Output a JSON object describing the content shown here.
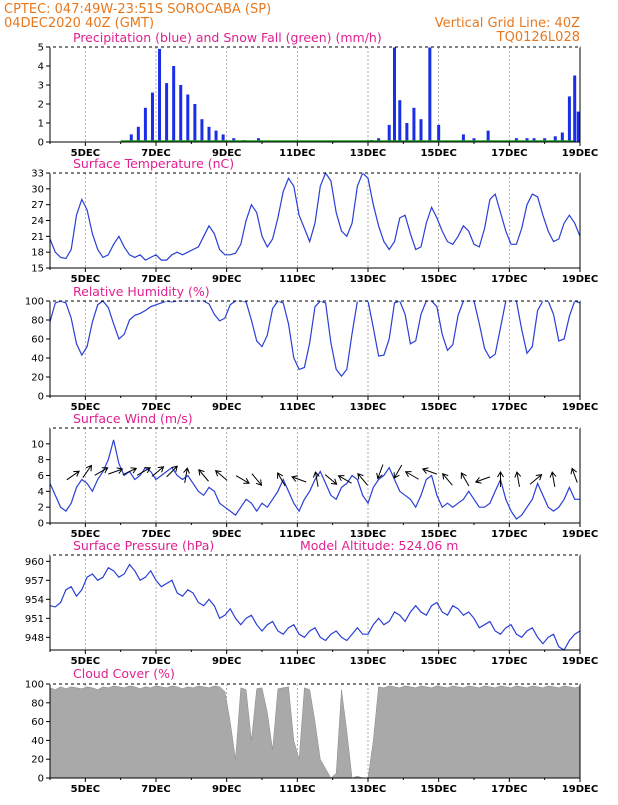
{
  "header": {
    "line1": "CPTEC:   047:49W-23:51S   SOROCABA (SP)",
    "line2": "04DEC2020 40Z (GMT)",
    "grid_note": "Vertical Grid Line: 40Z",
    "code": "TQ0126L028"
  },
  "colors": {
    "header": "#e8781e",
    "title": "#e0208e",
    "rain": "#1a2ee8",
    "snow": "#1a9a1a",
    "line": "#2a3fd6",
    "cloud": "#a9a9a9",
    "arrow": "#000000"
  },
  "x_axis": {
    "start_day": 4.0,
    "end_day": 19.0,
    "tick_days": [
      5,
      7,
      9,
      11,
      13,
      15,
      17,
      19
    ],
    "tick_labels": [
      "5DEC",
      "7DEC",
      "9DEC",
      "11DEC",
      "13DEC",
      "15DEC",
      "17DEC",
      "19DEC"
    ]
  },
  "chart_data": [
    {
      "id": "precip",
      "type": "bar",
      "title": "Precipitation (blue) and Snow Fall (green) (mm/h)",
      "ylim": [
        0,
        5
      ],
      "yticks": [
        0,
        1,
        2,
        3,
        4,
        5
      ],
      "series": [
        {
          "name": "Precipitation",
          "x": [
            6.3,
            6.5,
            6.7,
            6.9,
            7.1,
            7.3,
            7.5,
            7.7,
            7.9,
            8.1,
            8.3,
            8.5,
            8.7,
            8.9,
            9.2,
            9.5,
            9.9,
            13.1,
            13.3,
            13.6,
            13.75,
            13.9,
            14.1,
            14.3,
            14.5,
            14.75,
            15.0,
            15.7,
            16.0,
            16.4,
            17.2,
            17.5,
            17.7,
            18.0,
            18.3,
            18.5,
            18.7,
            18.85,
            18.95
          ],
          "values": [
            0.4,
            0.8,
            1.8,
            2.6,
            4.9,
            3.1,
            4.0,
            3.0,
            2.5,
            2.0,
            1.2,
            0.8,
            0.6,
            0.4,
            0.2,
            0.1,
            0.2,
            0.1,
            0.2,
            0.9,
            5.0,
            2.2,
            1.0,
            1.8,
            1.2,
            5.0,
            0.9,
            0.4,
            0.2,
            0.6,
            0.2,
            0.2,
            0.2,
            0.2,
            0.3,
            0.5,
            2.4,
            3.5,
            1.6
          ]
        },
        {
          "name": "Snow Fall",
          "x": [],
          "values": []
        }
      ]
    },
    {
      "id": "temperature",
      "type": "line",
      "title": "Surface Temperature (nC)",
      "ylim": [
        15,
        33
      ],
      "yticks": [
        15,
        18,
        21,
        24,
        27,
        30,
        33
      ],
      "x": [
        4.0,
        4.15,
        4.3,
        4.45,
        4.6,
        4.75,
        4.9,
        5.05,
        5.2,
        5.35,
        5.5,
        5.65,
        5.8,
        5.95,
        6.1,
        6.25,
        6.4,
        6.55,
        6.7,
        6.85,
        7.0,
        7.15,
        7.3,
        7.45,
        7.6,
        7.75,
        7.9,
        8.05,
        8.2,
        8.35,
        8.5,
        8.65,
        8.8,
        8.95,
        9.1,
        9.25,
        9.4,
        9.55,
        9.7,
        9.85,
        10.0,
        10.15,
        10.3,
        10.45,
        10.6,
        10.75,
        10.9,
        11.05,
        11.2,
        11.35,
        11.5,
        11.65,
        11.8,
        11.95,
        12.1,
        12.25,
        12.4,
        12.55,
        12.7,
        12.85,
        13.0,
        13.15,
        13.3,
        13.45,
        13.6,
        13.75,
        13.9,
        14.05,
        14.2,
        14.35,
        14.5,
        14.65,
        14.8,
        14.95,
        15.1,
        15.25,
        15.4,
        15.55,
        15.7,
        15.85,
        16.0,
        16.15,
        16.3,
        16.45,
        16.6,
        16.75,
        16.9,
        17.05,
        17.2,
        17.35,
        17.5,
        17.65,
        17.8,
        17.95,
        18.1,
        18.25,
        18.4,
        18.55,
        18.7,
        18.85,
        19.0
      ],
      "values": [
        20.5,
        18.0,
        17.0,
        16.8,
        18.5,
        25.0,
        28.0,
        26.0,
        21.5,
        18.5,
        17.0,
        17.5,
        19.5,
        21.0,
        19.0,
        17.5,
        17.0,
        17.5,
        16.5,
        17.0,
        17.5,
        16.5,
        16.5,
        17.5,
        18.0,
        17.5,
        18.0,
        18.5,
        19.0,
        21.0,
        23.0,
        21.5,
        18.5,
        17.5,
        17.5,
        17.8,
        19.5,
        24.0,
        27.0,
        25.5,
        21.0,
        19.0,
        20.5,
        24.5,
        29.5,
        32.0,
        30.5,
        25.0,
        22.5,
        20.0,
        23.5,
        30.5,
        33.0,
        31.5,
        25.5,
        22.0,
        21.0,
        23.5,
        30.5,
        33.0,
        32.0,
        27.0,
        23.0,
        20.0,
        18.5,
        20.0,
        24.5,
        25.0,
        21.5,
        18.5,
        19.0,
        23.5,
        26.5,
        24.5,
        22.0,
        20.0,
        19.5,
        21.0,
        23.0,
        22.0,
        19.5,
        19.0,
        22.5,
        28.0,
        29.0,
        25.5,
        22.0,
        19.5,
        19.5,
        22.5,
        27.0,
        29.0,
        28.5,
        25.0,
        22.0,
        20.0,
        20.5,
        23.5,
        25.0,
        23.5,
        21.0
      ]
    },
    {
      "id": "humidity",
      "type": "line",
      "title": "Relative Humidity (%)",
      "ylim": [
        0,
        100
      ],
      "yticks": [
        0,
        20,
        40,
        60,
        80,
        100
      ],
      "x": [
        4.0,
        4.15,
        4.3,
        4.45,
        4.6,
        4.75,
        4.9,
        5.05,
        5.2,
        5.35,
        5.5,
        5.65,
        5.8,
        5.95,
        6.1,
        6.25,
        6.4,
        6.55,
        6.7,
        6.85,
        7.0,
        7.15,
        7.3,
        7.45,
        7.6,
        7.75,
        7.9,
        8.05,
        8.2,
        8.35,
        8.5,
        8.65,
        8.8,
        8.95,
        9.1,
        9.25,
        9.4,
        9.55,
        9.7,
        9.85,
        10.0,
        10.15,
        10.3,
        10.45,
        10.6,
        10.75,
        10.9,
        11.05,
        11.2,
        11.35,
        11.5,
        11.65,
        11.8,
        11.95,
        12.1,
        12.25,
        12.4,
        12.55,
        12.7,
        12.85,
        13.0,
        13.15,
        13.3,
        13.45,
        13.6,
        13.75,
        13.9,
        14.05,
        14.2,
        14.35,
        14.5,
        14.65,
        14.8,
        14.95,
        15.1,
        15.25,
        15.4,
        15.55,
        15.7,
        15.85,
        16.0,
        16.15,
        16.3,
        16.45,
        16.6,
        16.75,
        16.9,
        17.05,
        17.2,
        17.35,
        17.5,
        17.65,
        17.8,
        17.95,
        18.1,
        18.25,
        18.4,
        18.55,
        18.7,
        18.85,
        19.0
      ],
      "values": [
        78,
        98,
        100,
        98,
        82,
        55,
        43,
        52,
        78,
        96,
        100,
        93,
        76,
        60,
        65,
        80,
        85,
        87,
        90,
        94,
        96,
        98,
        100,
        99,
        100,
        100,
        100,
        100,
        100,
        100,
        97,
        86,
        79,
        82,
        96,
        100,
        100,
        99,
        80,
        58,
        52,
        64,
        92,
        100,
        98,
        76,
        40,
        28,
        30,
        56,
        94,
        100,
        98,
        56,
        28,
        21,
        28,
        66,
        100,
        100,
        100,
        72,
        42,
        43,
        60,
        98,
        100,
        86,
        55,
        58,
        86,
        100,
        100,
        94,
        65,
        48,
        54,
        85,
        100,
        100,
        100,
        76,
        50,
        40,
        44,
        72,
        100,
        100,
        100,
        70,
        45,
        52,
        90,
        100,
        100,
        86,
        58,
        60,
        84,
        100,
        98
      ]
    },
    {
      "id": "wind",
      "type": "line",
      "title": "Surface Wind (m/s)",
      "ylim": [
        0,
        12
      ],
      "yticks": [
        0,
        2,
        4,
        6,
        8,
        10
      ],
      "x": [
        4.0,
        4.15,
        4.3,
        4.45,
        4.6,
        4.75,
        4.9,
        5.05,
        5.2,
        5.35,
        5.5,
        5.65,
        5.8,
        5.95,
        6.1,
        6.25,
        6.4,
        6.55,
        6.7,
        6.85,
        7.0,
        7.15,
        7.3,
        7.45,
        7.6,
        7.75,
        7.9,
        8.05,
        8.2,
        8.35,
        8.5,
        8.65,
        8.8,
        8.95,
        9.1,
        9.25,
        9.4,
        9.55,
        9.7,
        9.85,
        10.0,
        10.15,
        10.3,
        10.45,
        10.6,
        10.75,
        10.9,
        11.05,
        11.2,
        11.35,
        11.5,
        11.65,
        11.8,
        11.95,
        12.1,
        12.25,
        12.4,
        12.55,
        12.7,
        12.85,
        13.0,
        13.15,
        13.3,
        13.45,
        13.6,
        13.75,
        13.9,
        14.05,
        14.2,
        14.35,
        14.5,
        14.65,
        14.8,
        14.95,
        15.1,
        15.25,
        15.4,
        15.55,
        15.7,
        15.85,
        16.0,
        16.15,
        16.3,
        16.45,
        16.6,
        16.75,
        16.9,
        17.05,
        17.2,
        17.35,
        17.5,
        17.65,
        17.8,
        17.95,
        18.1,
        18.25,
        18.4,
        18.55,
        18.7,
        18.85,
        19.0
      ],
      "values": [
        5.0,
        3.5,
        2.0,
        1.5,
        2.5,
        4.5,
        5.5,
        5.0,
        4.0,
        5.5,
        6.5,
        8.0,
        10.5,
        7.5,
        6.0,
        6.5,
        5.5,
        6.0,
        7.0,
        6.5,
        5.5,
        6.0,
        6.5,
        7.0,
        6.0,
        5.5,
        6.0,
        5.0,
        4.0,
        3.5,
        4.5,
        4.0,
        2.5,
        2.0,
        1.5,
        1.0,
        2.0,
        3.0,
        2.5,
        1.5,
        2.5,
        2.0,
        3.0,
        4.0,
        5.5,
        4.0,
        2.5,
        1.5,
        3.0,
        4.0,
        5.5,
        6.5,
        5.0,
        3.5,
        3.0,
        4.5,
        5.0,
        6.0,
        5.5,
        3.5,
        2.5,
        4.5,
        5.5,
        6.0,
        7.0,
        5.5,
        4.0,
        3.5,
        3.0,
        2.0,
        3.5,
        5.5,
        6.0,
        3.5,
        2.0,
        2.5,
        2.0,
        2.5,
        3.0,
        4.0,
        3.0,
        2.0,
        2.0,
        2.5,
        4.0,
        5.5,
        3.0,
        1.5,
        0.5,
        1.0,
        2.0,
        3.0,
        5.0,
        3.5,
        2.0,
        1.5,
        2.0,
        3.0,
        4.5,
        3.0,
        3.0
      ],
      "arrows": {
        "x": [
          4.65,
          5.05,
          5.45,
          5.85,
          6.25,
          6.65,
          7.05,
          7.45,
          7.85,
          8.35,
          8.85,
          9.45,
          9.85,
          10.55,
          11.05,
          11.55,
          11.95,
          12.35,
          12.85,
          13.35,
          13.85,
          14.25,
          14.75,
          15.25,
          15.75,
          16.25,
          16.75,
          17.25,
          17.75,
          18.25,
          18.85
        ],
        "dir_deg": [
          35,
          55,
          30,
          20,
          25,
          30,
          40,
          45,
          80,
          130,
          140,
          330,
          310,
          120,
          160,
          100,
          320,
          150,
          130,
          250,
          240,
          150,
          160,
          130,
          120,
          200,
          90,
          100,
          40,
          100,
          110
        ],
        "level": [
          6.0,
          6.5,
          6.5,
          6.5,
          6.5,
          6.5,
          6.5,
          6.5,
          6.0,
          6.0,
          6.0,
          5.5,
          5.5,
          5.5,
          5.5,
          5.5,
          5.5,
          5.5,
          5.5,
          6.5,
          6.5,
          6.0,
          6.5,
          5.5,
          5.5,
          5.5,
          5.5,
          5.5,
          5.5,
          5.5,
          6.0
        ]
      }
    },
    {
      "id": "pressure",
      "type": "line",
      "title": "Surface Pressure (hPa)",
      "subtitle": "Model Altitude: 524.06  m",
      "ylim": [
        946,
        961
      ],
      "yticks": [
        948,
        951,
        954,
        957,
        960
      ],
      "x": [
        4.0,
        4.15,
        4.3,
        4.45,
        4.6,
        4.75,
        4.9,
        5.05,
        5.2,
        5.35,
        5.5,
        5.65,
        5.8,
        5.95,
        6.1,
        6.25,
        6.4,
        6.55,
        6.7,
        6.85,
        7.0,
        7.15,
        7.3,
        7.45,
        7.6,
        7.75,
        7.9,
        8.05,
        8.2,
        8.35,
        8.5,
        8.65,
        8.8,
        8.95,
        9.1,
        9.25,
        9.4,
        9.55,
        9.7,
        9.85,
        10.0,
        10.15,
        10.3,
        10.45,
        10.6,
        10.75,
        10.9,
        11.05,
        11.2,
        11.35,
        11.5,
        11.65,
        11.8,
        11.95,
        12.1,
        12.25,
        12.4,
        12.55,
        12.7,
        12.85,
        13.0,
        13.15,
        13.3,
        13.45,
        13.6,
        13.75,
        13.9,
        14.05,
        14.2,
        14.35,
        14.5,
        14.65,
        14.8,
        14.95,
        15.1,
        15.25,
        15.4,
        15.55,
        15.7,
        15.85,
        16.0,
        16.15,
        16.3,
        16.45,
        16.6,
        16.75,
        16.9,
        17.05,
        17.2,
        17.35,
        17.5,
        17.65,
        17.8,
        17.95,
        18.1,
        18.25,
        18.4,
        18.55,
        18.7,
        18.85,
        19.0
      ],
      "values": [
        953.0,
        952.8,
        953.5,
        955.5,
        956.0,
        954.5,
        955.5,
        957.5,
        958.0,
        957.0,
        957.5,
        959.0,
        958.5,
        957.5,
        958.0,
        959.5,
        958.5,
        957.0,
        957.5,
        958.5,
        957.0,
        956.0,
        956.5,
        957.0,
        955.0,
        954.5,
        955.5,
        955.0,
        953.5,
        953.0,
        954.0,
        953.0,
        951.0,
        951.5,
        952.5,
        951.0,
        950.0,
        951.0,
        951.5,
        950.0,
        949.0,
        950.0,
        950.5,
        949.0,
        948.5,
        949.5,
        950.0,
        948.5,
        948.0,
        949.0,
        949.5,
        948.0,
        947.5,
        948.5,
        949.0,
        948.0,
        947.5,
        948.5,
        949.5,
        948.5,
        948.5,
        950.0,
        951.0,
        950.0,
        950.5,
        952.0,
        951.5,
        950.5,
        952.0,
        953.0,
        952.0,
        951.5,
        953.0,
        953.5,
        952.0,
        951.5,
        953.0,
        952.5,
        951.5,
        952.0,
        951.0,
        949.5,
        950.0,
        950.5,
        949.0,
        948.5,
        949.5,
        950.0,
        948.5,
        948.0,
        949.0,
        949.5,
        948.0,
        947.0,
        948.0,
        948.5,
        946.5,
        946.0,
        947.5,
        948.5,
        949.0
      ]
    },
    {
      "id": "cloud",
      "type": "area",
      "title": "Cloud Cover (%)",
      "ylim": [
        0,
        100
      ],
      "yticks": [
        0,
        20,
        40,
        60,
        80,
        100
      ],
      "x": [
        4.0,
        4.15,
        4.3,
        4.45,
        4.6,
        4.75,
        4.9,
        5.05,
        5.2,
        5.35,
        5.5,
        5.65,
        5.8,
        5.95,
        6.1,
        6.25,
        6.4,
        6.55,
        6.7,
        6.85,
        7.0,
        7.15,
        7.3,
        7.45,
        7.6,
        7.75,
        7.9,
        8.05,
        8.2,
        8.35,
        8.5,
        8.65,
        8.8,
        8.95,
        9.1,
        9.25,
        9.4,
        9.55,
        9.7,
        9.85,
        10.0,
        10.15,
        10.3,
        10.45,
        10.6,
        10.75,
        10.9,
        11.05,
        11.2,
        11.35,
        11.5,
        11.65,
        11.8,
        11.95,
        12.1,
        12.25,
        12.4,
        12.55,
        12.7,
        12.85,
        13.0,
        13.15,
        13.3,
        13.45,
        13.6,
        13.75,
        13.9,
        14.05,
        14.2,
        14.35,
        14.5,
        14.65,
        14.8,
        14.95,
        15.1,
        15.25,
        15.4,
        15.55,
        15.7,
        15.85,
        16.0,
        16.15,
        16.3,
        16.45,
        16.6,
        16.75,
        16.9,
        17.05,
        17.2,
        17.35,
        17.5,
        17.65,
        17.8,
        17.95,
        18.1,
        18.25,
        18.4,
        18.55,
        18.7,
        18.85,
        19.0
      ],
      "values": [
        96,
        94,
        97,
        95,
        97,
        96,
        95,
        97,
        96,
        94,
        97,
        96,
        98,
        97,
        96,
        98,
        97,
        95,
        97,
        96,
        98,
        97,
        96,
        98,
        97,
        95,
        97,
        96,
        98,
        97,
        96,
        98,
        97,
        92,
        60,
        20,
        96,
        94,
        40,
        95,
        96,
        70,
        30,
        95,
        96,
        97,
        40,
        20,
        96,
        94,
        60,
        20,
        10,
        0,
        5,
        94,
        50,
        0,
        2,
        0,
        0,
        40,
        97,
        96,
        98,
        97,
        96,
        98,
        97,
        96,
        98,
        97,
        96,
        98,
        97,
        96,
        98,
        97,
        96,
        98,
        97,
        96,
        98,
        97,
        96,
        98,
        97,
        96,
        98,
        97,
        96,
        98,
        97,
        96,
        98,
        97,
        96,
        98,
        97,
        96,
        97
      ]
    }
  ]
}
